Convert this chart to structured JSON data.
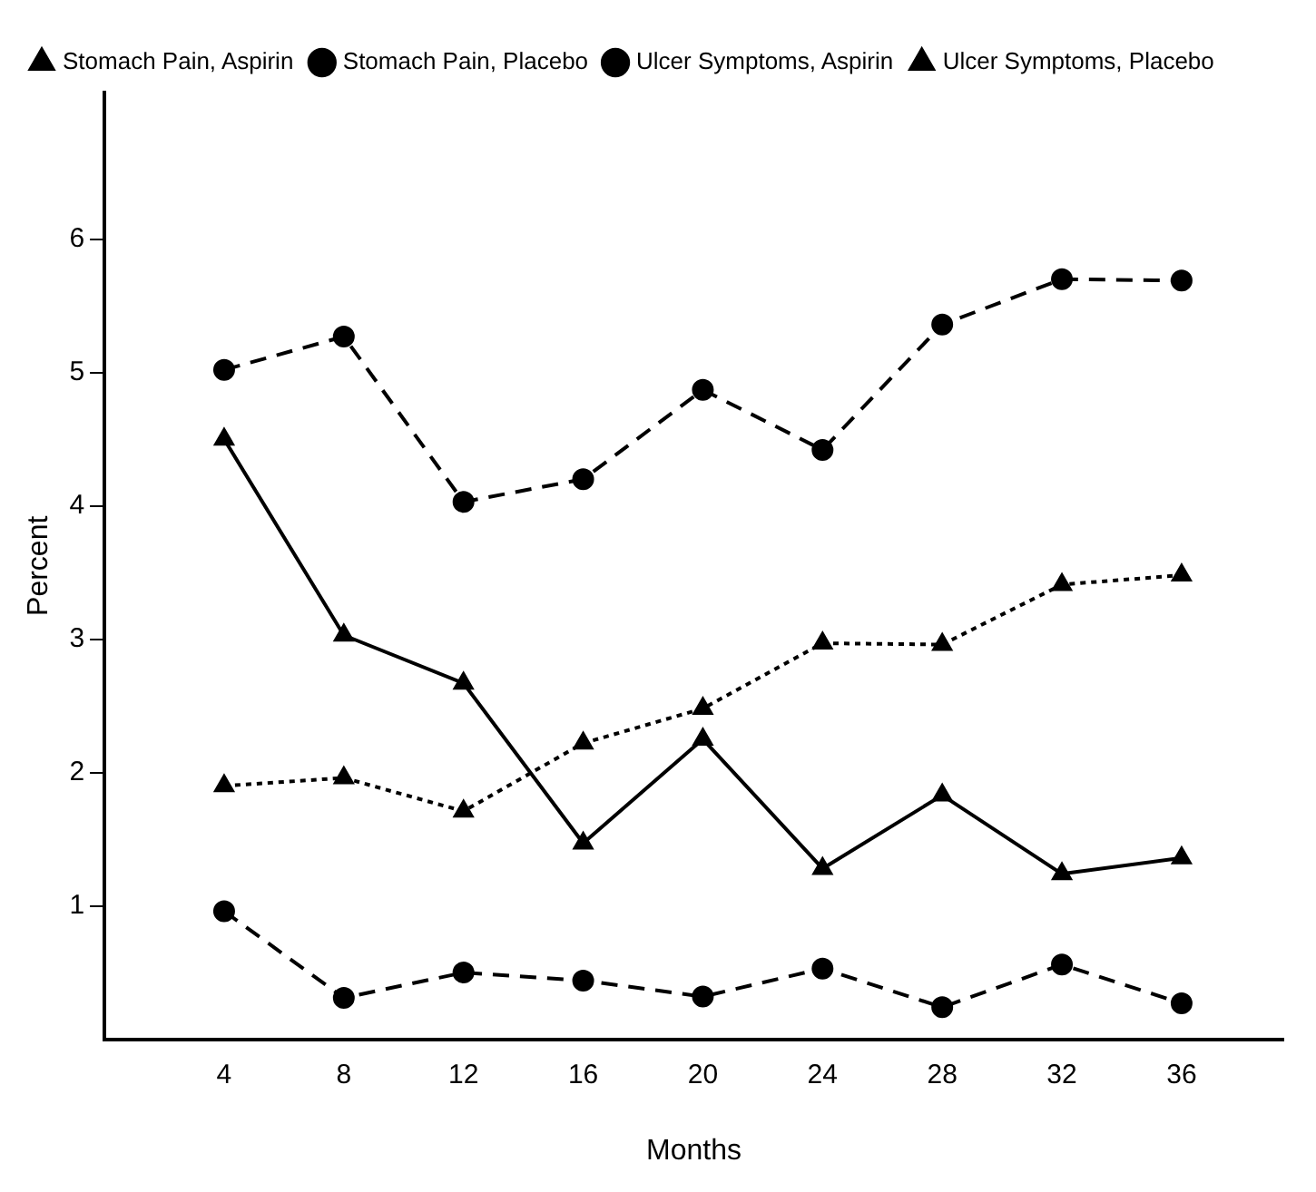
{
  "chart_data": {
    "type": "line",
    "xlabel": "Months",
    "ylabel": "Percent",
    "x": [
      4,
      8,
      12,
      16,
      20,
      24,
      28,
      32,
      36
    ],
    "xlim": [
      0,
      39.4
    ],
    "xticks": [
      4,
      8,
      12,
      16,
      20,
      24,
      28,
      32,
      36
    ],
    "ylim": [
      0,
      7.1
    ],
    "yticks": [
      1,
      2,
      3,
      4,
      5,
      6
    ],
    "grid": false,
    "legend": "top left",
    "series": [
      {
        "name": "Stomach Pain, Aspirin",
        "color": "#000000",
        "marker": "triangle",
        "line_style": "solid",
        "values": [
          4.5,
          3.03,
          2.67,
          1.47,
          2.25,
          1.28,
          1.83,
          1.24,
          1.36
        ]
      },
      {
        "name": "Stomach Pain, Placebo",
        "color": "#000000",
        "marker": "circle",
        "line_style": "dashed",
        "values": [
          0.96,
          0.31,
          0.5,
          0.44,
          0.32,
          0.53,
          0.24,
          0.56,
          0.27
        ]
      },
      {
        "name": "Ulcer Symptoms, Aspirin",
        "color": "#000000",
        "marker": "circle",
        "line_style": "dashed",
        "values": [
          5.02,
          5.27,
          4.03,
          4.2,
          4.87,
          4.42,
          5.36,
          5.7,
          5.69
        ]
      },
      {
        "name": "Ulcer Symptoms, Placebo",
        "color": "#000000",
        "marker": "triangle",
        "line_style": "dotted",
        "values": [
          1.9,
          1.96,
          1.71,
          2.22,
          2.48,
          2.97,
          2.96,
          3.41,
          3.48
        ]
      }
    ]
  }
}
